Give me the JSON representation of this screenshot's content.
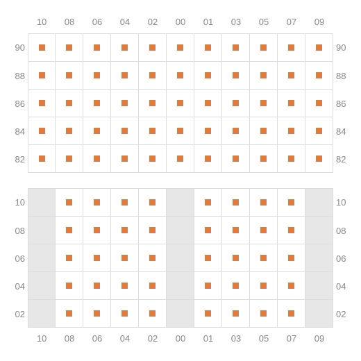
{
  "layout": {
    "cell_size": 40,
    "marker_size": 9,
    "cols": 11,
    "rows_per_block": 5
  },
  "colors": {
    "marker": "#e07b3f",
    "grid_line": "#dddddd",
    "empty_cell": "#e6e6e6",
    "label": "#888888",
    "background": "#ffffff"
  },
  "columns": [
    "10",
    "08",
    "06",
    "04",
    "02",
    "00",
    "01",
    "03",
    "05",
    "07",
    "09"
  ],
  "blocks": [
    {
      "id": "top",
      "row_labels": [
        "90",
        "88",
        "86",
        "84",
        "82"
      ],
      "top_col_labels": true,
      "bottom_col_labels": false,
      "cells": [
        [
          1,
          1,
          1,
          1,
          1,
          1,
          1,
          1,
          1,
          1,
          1
        ],
        [
          1,
          1,
          1,
          1,
          1,
          1,
          1,
          1,
          1,
          1,
          1
        ],
        [
          1,
          1,
          1,
          1,
          1,
          1,
          1,
          1,
          1,
          1,
          1
        ],
        [
          1,
          1,
          1,
          1,
          1,
          1,
          1,
          1,
          1,
          1,
          1
        ],
        [
          1,
          1,
          1,
          1,
          1,
          1,
          1,
          1,
          1,
          1,
          1
        ]
      ]
    },
    {
      "id": "bottom",
      "row_labels": [
        "10",
        "08",
        "06",
        "04",
        "02"
      ],
      "top_col_labels": false,
      "bottom_col_labels": true,
      "cells": [
        [
          0,
          1,
          1,
          1,
          1,
          0,
          1,
          1,
          1,
          1,
          0
        ],
        [
          0,
          1,
          1,
          1,
          1,
          0,
          1,
          1,
          1,
          1,
          0
        ],
        [
          0,
          1,
          1,
          1,
          1,
          0,
          1,
          1,
          1,
          1,
          0
        ],
        [
          0,
          1,
          1,
          1,
          1,
          0,
          1,
          1,
          1,
          1,
          0
        ],
        [
          0,
          1,
          1,
          1,
          1,
          0,
          1,
          1,
          1,
          1,
          0
        ]
      ]
    }
  ]
}
